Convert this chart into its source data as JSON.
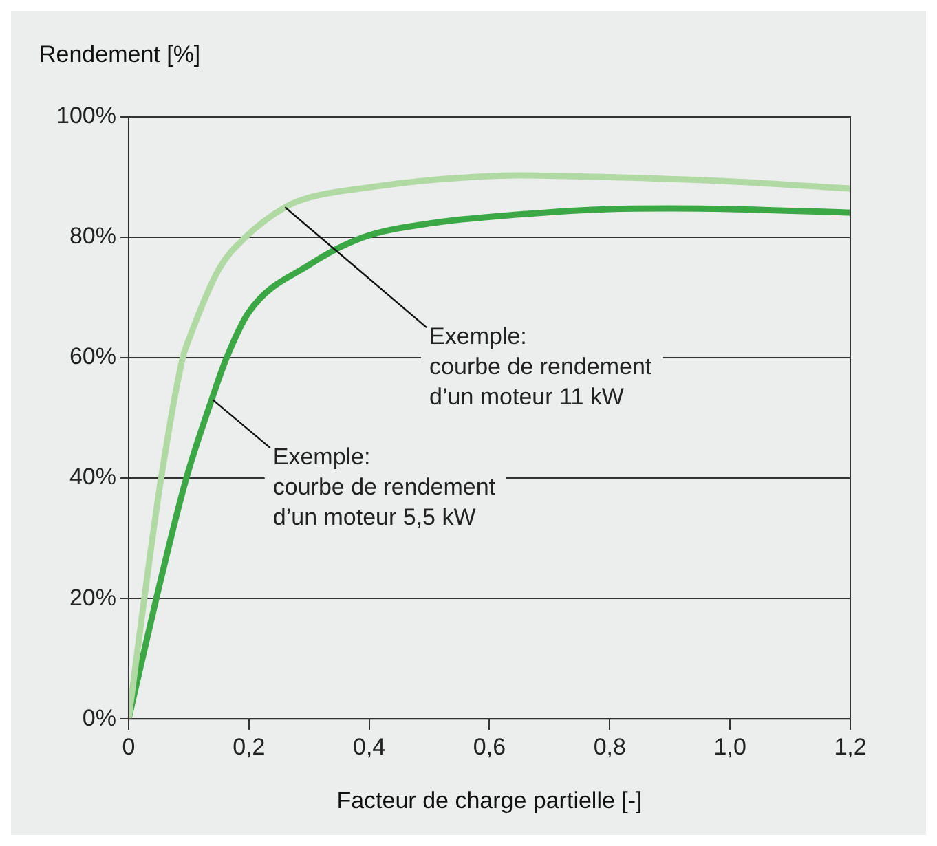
{
  "chart_data": {
    "type": "line",
    "ylabel": "Rendement [%]",
    "xlabel": "Facteur de charge partielle [-]",
    "series": [
      {
        "color": "#b1d9a3",
        "x": [
          0,
          0.026,
          0.054,
          0.09,
          0.1,
          0.15,
          0.194,
          0.26,
          0.3,
          0.4,
          0.5,
          0.65,
          0.8,
          1.0,
          1.2
        ],
        "values": [
          0,
          20,
          40,
          60,
          63,
          74.7,
          80,
          85,
          86.6,
          88.3,
          89.5,
          90.3,
          90,
          89.3,
          88.1
        ]
      },
      {
        "color": "#3ba845",
        "x": [
          0,
          0.046,
          0.096,
          0.138,
          0.163,
          0.2,
          0.3,
          0.39,
          0.5,
          0.65,
          0.8,
          0.9,
          1.0,
          1.2
        ],
        "values": [
          0,
          20,
          40,
          53,
          60,
          67.6,
          75.4,
          80,
          82.3,
          83.8,
          84.7,
          84.8,
          84.7,
          84.1
        ]
      }
    ],
    "xlim": [
      0,
      1.2
    ],
    "xticks": [
      0,
      {
        "value": 0.2,
        "label": "0,2"
      },
      {
        "value": 0.4,
        "label": "0,4"
      },
      {
        "value": 0.6,
        "label": "0,6"
      },
      {
        "value": 0.8,
        "label": "0,8"
      },
      {
        "value": 1.0,
        "label": "1,0"
      },
      {
        "value": 1.2,
        "label": "1,2"
      }
    ],
    "ylim": [
      0,
      100
    ],
    "yticks": [
      {
        "value": 0,
        "label": "0%"
      },
      {
        "value": 20,
        "label": "20%"
      },
      {
        "value": 40,
        "label": "40%"
      },
      {
        "value": 60,
        "label": "60%"
      },
      {
        "value": 80,
        "label": "80%"
      },
      {
        "value": 100,
        "label": "100%"
      }
    ],
    "grid": "y",
    "legend": false,
    "marker": "none",
    "line_style": "solid",
    "annotations": [
      {
        "text": "Exemple:\ncourbe de rendement\nd’un moteur 11 kW",
        "x": 0.26,
        "y": 85
      },
      {
        "text": "Exemple:\ncourbe de rendement\nd’un moteur 5,5 kW",
        "x": 0.14,
        "y": 53
      }
    ]
  }
}
